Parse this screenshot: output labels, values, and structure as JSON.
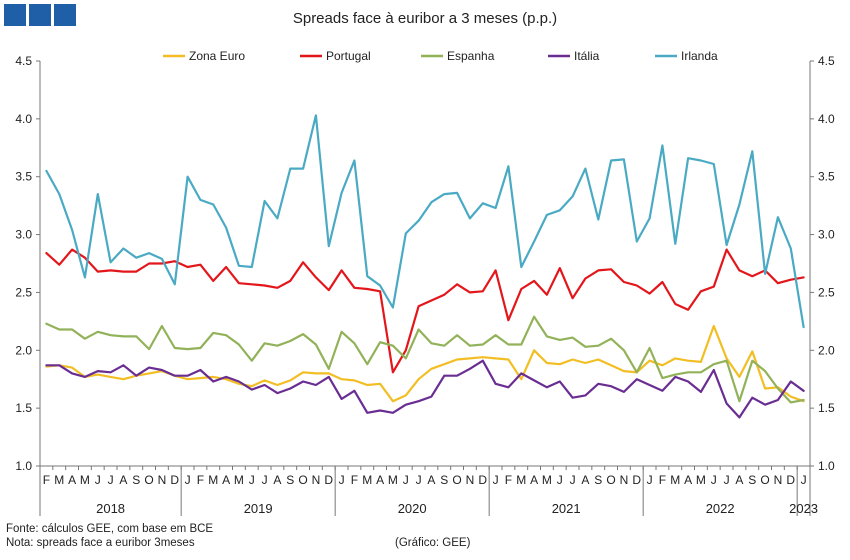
{
  "header": {
    "title": "Spreads face à euribor a 3 meses (p.p.)"
  },
  "footer": {
    "source": "Fonte: cálculos GEE, com base em BCE",
    "note": "Nota: spreads face a euribor 3meses",
    "credit": "(Gráfico: GEE)"
  },
  "chart_data": {
    "type": "line",
    "title": "Spreads face à euribor a 3 meses (p.p.)",
    "ylim": [
      1.0,
      4.5
    ],
    "yticks": [
      "1.0",
      "1.5",
      "2.0",
      "2.5",
      "3.0",
      "3.5",
      "4.0",
      "4.5"
    ],
    "month_labels": [
      "F",
      "M",
      "A",
      "M",
      "J",
      "J",
      "A",
      "S",
      "O",
      "N",
      "D",
      "J",
      "F",
      "M",
      "A",
      "M",
      "J",
      "J",
      "A",
      "S",
      "O",
      "N",
      "D",
      "J",
      "F",
      "M",
      "A",
      "M",
      "J",
      "J",
      "A",
      "S",
      "O",
      "N",
      "D",
      "J",
      "F",
      "M",
      "A",
      "M",
      "J",
      "J",
      "A",
      "S",
      "O",
      "N",
      "D",
      "J",
      "F",
      "M",
      "A",
      "M",
      "J",
      "J",
      "A",
      "S",
      "O",
      "N",
      "D",
      "J"
    ],
    "years": [
      {
        "label": "2018",
        "start": 0,
        "end": 10
      },
      {
        "label": "2019",
        "start": 11,
        "end": 22
      },
      {
        "label": "2020",
        "start": 23,
        "end": 34
      },
      {
        "label": "2021",
        "start": 35,
        "end": 46
      },
      {
        "label": "2022",
        "start": 47,
        "end": 58
      },
      {
        "label": "2023",
        "start": 59,
        "end": 59
      }
    ],
    "legend_position": "top",
    "series": [
      {
        "name": "Zona Euro",
        "color": "#f2be24",
        "values": [
          1.86,
          1.87,
          1.85,
          1.77,
          1.79,
          1.77,
          1.75,
          1.78,
          1.8,
          1.82,
          1.78,
          1.75,
          1.76,
          1.77,
          1.75,
          1.71,
          1.69,
          1.74,
          1.7,
          1.74,
          1.81,
          1.8,
          1.8,
          1.75,
          1.74,
          1.7,
          1.71,
          1.56,
          1.61,
          1.75,
          1.84,
          1.88,
          1.92,
          1.93,
          1.94,
          1.93,
          1.92,
          1.75,
          2.0,
          1.89,
          1.88,
          1.92,
          1.89,
          1.92,
          1.87,
          1.82,
          1.81,
          1.91,
          1.87,
          1.93,
          1.91,
          1.9,
          2.21,
          1.93,
          1.77,
          1.99,
          1.67,
          1.68,
          1.6,
          1.56
        ]
      },
      {
        "name": "Portugal",
        "color": "#e3161b",
        "values": [
          2.84,
          2.74,
          2.87,
          2.8,
          2.68,
          2.69,
          2.68,
          2.68,
          2.75,
          2.75,
          2.77,
          2.72,
          2.74,
          2.6,
          2.72,
          2.58,
          2.57,
          2.56,
          2.54,
          2.6,
          2.76,
          2.63,
          2.52,
          2.69,
          2.54,
          2.53,
          2.51,
          1.81,
          2.0,
          2.38,
          2.43,
          2.48,
          2.57,
          2.5,
          2.51,
          2.69,
          2.26,
          2.53,
          2.6,
          2.48,
          2.71,
          2.45,
          2.62,
          2.69,
          2.7,
          2.59,
          2.56,
          2.49,
          2.59,
          2.4,
          2.35,
          2.51,
          2.55,
          2.87,
          2.69,
          2.64,
          2.69,
          2.58,
          2.61,
          2.63
        ]
      },
      {
        "name": "Espanha",
        "color": "#92b259",
        "values": [
          2.23,
          2.18,
          2.18,
          2.1,
          2.16,
          2.13,
          2.12,
          2.12,
          2.01,
          2.21,
          2.02,
          2.01,
          2.02,
          2.15,
          2.13,
          2.05,
          1.91,
          2.06,
          2.04,
          2.08,
          2.14,
          2.05,
          1.84,
          2.16,
          2.06,
          1.88,
          2.07,
          2.04,
          1.93,
          2.18,
          2.06,
          2.04,
          2.13,
          2.04,
          2.05,
          2.13,
          2.05,
          2.05,
          2.29,
          2.12,
          2.09,
          2.11,
          2.03,
          2.04,
          2.1,
          2.0,
          1.81,
          2.02,
          1.76,
          1.79,
          1.81,
          1.81,
          1.88,
          1.91,
          1.56,
          1.91,
          1.82,
          1.67,
          1.55,
          1.57
        ]
      },
      {
        "name": "Itália",
        "color": "#6a2d91",
        "values": [
          1.87,
          1.87,
          1.8,
          1.77,
          1.82,
          1.81,
          1.87,
          1.78,
          1.85,
          1.83,
          1.78,
          1.78,
          1.83,
          1.73,
          1.77,
          1.73,
          1.66,
          1.7,
          1.63,
          1.67,
          1.73,
          1.7,
          1.77,
          1.58,
          1.65,
          1.46,
          1.48,
          1.46,
          1.53,
          1.56,
          1.6,
          1.78,
          1.78,
          1.84,
          1.91,
          1.71,
          1.68,
          1.8,
          1.74,
          1.68,
          1.73,
          1.59,
          1.61,
          1.71,
          1.69,
          1.64,
          1.75,
          1.7,
          1.65,
          1.77,
          1.73,
          1.64,
          1.83,
          1.54,
          1.42,
          1.59,
          1.53,
          1.57,
          1.73,
          1.65
        ]
      },
      {
        "name": "Irlanda",
        "color": "#4aaac4",
        "values": [
          3.55,
          3.35,
          3.04,
          2.63,
          3.35,
          2.76,
          2.88,
          2.8,
          2.84,
          2.79,
          2.57,
          3.5,
          3.3,
          3.26,
          3.06,
          2.73,
          2.72,
          3.29,
          3.14,
          3.57,
          3.57,
          4.03,
          2.9,
          3.36,
          3.64,
          2.64,
          2.56,
          2.37,
          3.01,
          3.12,
          3.28,
          3.35,
          3.36,
          3.14,
          3.27,
          3.23,
          3.59,
          2.72,
          2.94,
          3.17,
          3.21,
          3.33,
          3.57,
          3.13,
          3.64,
          3.65,
          2.94,
          3.14,
          3.77,
          2.92,
          3.66,
          3.64,
          3.61,
          2.91,
          3.26,
          3.72,
          2.66,
          3.15,
          2.88,
          2.2
        ]
      }
    ]
  }
}
